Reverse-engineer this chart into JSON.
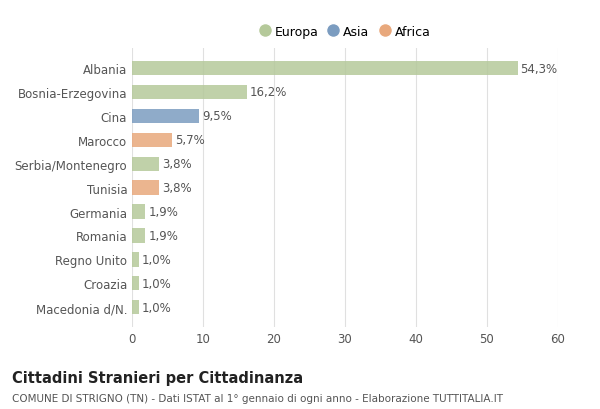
{
  "categories": [
    "Macedonia d/N.",
    "Croazia",
    "Regno Unito",
    "Romania",
    "Germania",
    "Tunisia",
    "Serbia/Montenegro",
    "Marocco",
    "Cina",
    "Bosnia-Erzegovina",
    "Albania"
  ],
  "values": [
    1.0,
    1.0,
    1.0,
    1.9,
    1.9,
    3.8,
    3.8,
    5.7,
    9.5,
    16.2,
    54.3
  ],
  "colors": [
    "#b5c99a",
    "#b5c99a",
    "#b5c99a",
    "#b5c99a",
    "#b5c99a",
    "#e8a87c",
    "#b5c99a",
    "#e8a87c",
    "#7b9cc0",
    "#b5c99a",
    "#b5c99a"
  ],
  "legend_labels": [
    "Europa",
    "Asia",
    "Africa"
  ],
  "legend_colors": [
    "#b5c99a",
    "#7b9cc0",
    "#e8a87c"
  ],
  "title": "Cittadini Stranieri per Cittadinanza",
  "subtitle": "COMUNE DI STRIGNO (TN) - Dati ISTAT al 1° gennaio di ogni anno - Elaborazione TUTTITALIA.IT",
  "xlim": [
    0,
    60
  ],
  "xticks": [
    0,
    10,
    20,
    30,
    40,
    50,
    60
  ],
  "bar_labels": [
    "1,0%",
    "1,0%",
    "1,0%",
    "1,9%",
    "1,9%",
    "3,8%",
    "3,8%",
    "5,7%",
    "9,5%",
    "16,2%",
    "54,3%"
  ],
  "bg_color": "#ffffff",
  "grid_color": "#e0e0e0",
  "bar_height": 0.6,
  "title_fontsize": 10.5,
  "subtitle_fontsize": 7.5,
  "tick_fontsize": 8.5,
  "label_fontsize": 8.5
}
